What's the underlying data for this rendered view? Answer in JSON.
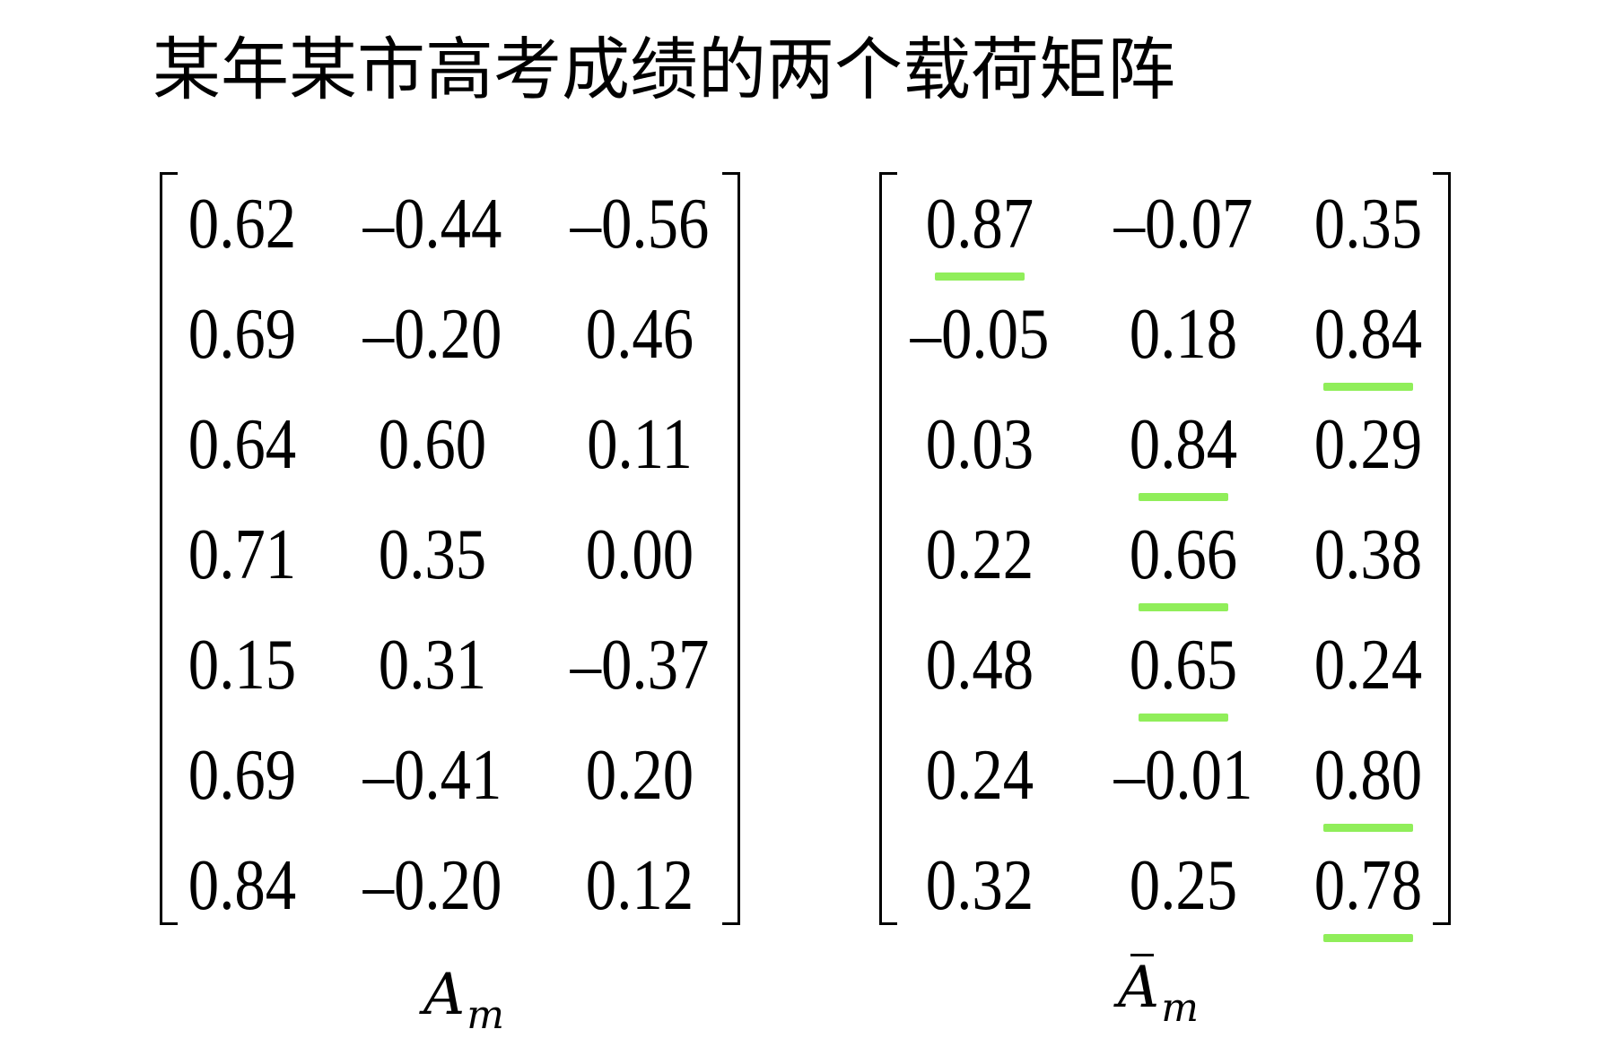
{
  "title": "某年某市高考成绩的两个载荷矩阵",
  "matrices": [
    {
      "id": "left",
      "label_base": "A",
      "label_sub": "m",
      "rows": [
        [
          "0.62",
          "–0.44",
          "–0.56"
        ],
        [
          "0.69",
          "–0.20",
          "0.46"
        ],
        [
          "0.64",
          "0.60",
          "0.11"
        ],
        [
          "0.71",
          "0.35",
          "0.00"
        ],
        [
          "0.15",
          "0.31",
          "–0.37"
        ],
        [
          "0.69",
          "–0.41",
          "0.20"
        ],
        [
          "0.84",
          "–0.20",
          "0.12"
        ]
      ],
      "highlighted": []
    },
    {
      "id": "right",
      "label_base": "A",
      "label_sub": "m",
      "rows": [
        [
          "0.87",
          "–0.07",
          "0.35"
        ],
        [
          "–0.05",
          "0.18",
          "0.84"
        ],
        [
          "0.03",
          "0.84",
          "0.29"
        ],
        [
          "0.22",
          "0.66",
          "0.38"
        ],
        [
          "0.48",
          "0.65",
          "0.24"
        ],
        [
          "0.24",
          "–0.01",
          "0.80"
        ],
        [
          "0.32",
          "0.25",
          "0.78"
        ]
      ],
      "highlighted": [
        [
          0,
          0
        ],
        [
          1,
          2
        ],
        [
          2,
          1
        ],
        [
          3,
          1
        ],
        [
          4,
          1
        ],
        [
          5,
          2
        ],
        [
          6,
          2
        ]
      ]
    }
  ],
  "colors": {
    "highlight": "#90ee5a",
    "text": "#000000"
  }
}
